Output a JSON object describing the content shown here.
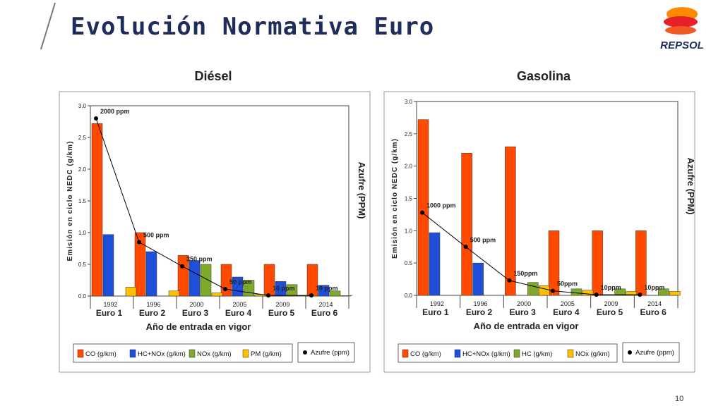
{
  "slide": {
    "title": "Evolución Normativa Euro",
    "page_number": "10",
    "logo_text": "REPSOL"
  },
  "colors": {
    "co": "#ff4a00",
    "hcnox": "#1f4fd8",
    "nox_diesel": "#7ea92a",
    "pm": "#ffc000",
    "hc_gas": "#7ea92a",
    "nox_gas": "#ffc000",
    "sulfur": "#000000",
    "title": "#1f2d5a"
  },
  "chart_data": [
    {
      "type": "bar",
      "panel_title": "Diésel",
      "categories": [
        "1992",
        "1996",
        "2000",
        "2005",
        "2009",
        "2014"
      ],
      "euro_labels": [
        "Euro 1",
        "Euro 2",
        "Euro 3",
        "Euro 4",
        "Euro 5",
        "Euro 6"
      ],
      "series": [
        {
          "name": "CO (g/km)",
          "values": [
            2.72,
            1.0,
            0.64,
            0.5,
            0.5,
            0.5
          ]
        },
        {
          "name": "HC+NOx (g/km)",
          "values": [
            0.97,
            0.7,
            0.56,
            0.3,
            0.23,
            0.17
          ]
        },
        {
          "name": "NOx (g/km)",
          "values": [
            null,
            null,
            0.5,
            0.25,
            0.18,
            0.08
          ]
        },
        {
          "name": "PM (g/km)",
          "values": [
            0.14,
            0.08,
            0.05,
            0.025,
            0.005,
            0.005
          ]
        }
      ],
      "sulfur_line": {
        "name": "Azufre (ppm)",
        "y_positions": [
          2.8,
          0.85,
          0.47,
          0.11,
          0.01,
          0.01
        ],
        "labels": [
          "2000 ppm",
          "500 ppm",
          "350 ppm",
          "50 ppm",
          "10 ppm",
          "10 ppm"
        ]
      },
      "xlabel": "Año de entrada en vigor",
      "ylabel": "Emisión en ciclo NEDC (g/km)",
      "y2label": "Azufre (PPM)",
      "ylim": [
        0,
        3.0
      ],
      "yticks": [
        "0.0",
        "0.5",
        "1.0",
        "1.5",
        "2.0",
        "2.5",
        "3.0"
      ],
      "legend_placement": "bottom"
    },
    {
      "type": "bar",
      "panel_title": "Gasolina",
      "categories": [
        "1992",
        "1996",
        "2000",
        "2005",
        "2009",
        "2014"
      ],
      "euro_labels": [
        "Euro 1",
        "Euro 2",
        "Euro 3",
        "Euro 4",
        "Euro 5",
        "Euro 6"
      ],
      "series": [
        {
          "name": "CO (g/km)",
          "values": [
            2.72,
            2.2,
            2.3,
            1.0,
            1.0,
            1.0
          ]
        },
        {
          "name": "HC+NOx (g/km)",
          "values": [
            0.97,
            0.5,
            null,
            null,
            null,
            null
          ]
        },
        {
          "name": "HC (g/km)",
          "values": [
            null,
            null,
            0.2,
            0.1,
            0.1,
            0.1
          ]
        },
        {
          "name": "NOx (g/km)",
          "values": [
            null,
            null,
            0.15,
            0.08,
            0.06,
            0.06
          ]
        }
      ],
      "sulfur_line": {
        "name": "Azufre (ppm)",
        "y_positions": [
          1.28,
          0.75,
          0.23,
          0.07,
          0.01,
          0.01
        ],
        "labels": [
          "1000 ppm",
          "500 ppm",
          "150ppm",
          "50ppm",
          "10ppm",
          "10ppm"
        ]
      },
      "xlabel": "Año de entrada en vigor",
      "ylabel": "Emisión en ciclo NEDC (g/km)",
      "y2label": "Azufre (PPM)",
      "ylim": [
        0,
        3.0
      ],
      "yticks": [
        "0.0",
        "0.5",
        "1.0",
        "1.5",
        "2.0",
        "2.5",
        "3.0"
      ],
      "legend_placement": "bottom"
    }
  ]
}
